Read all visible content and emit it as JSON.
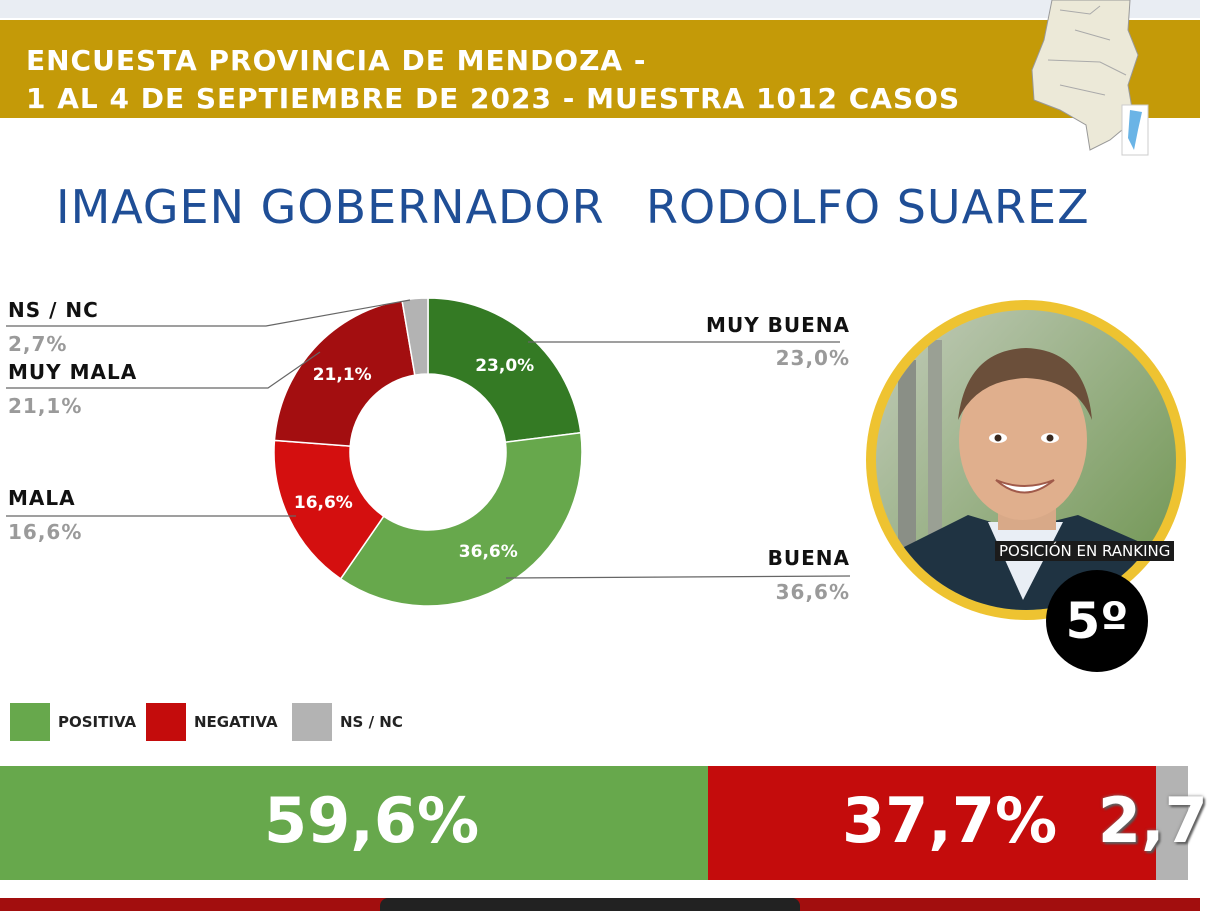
{
  "header": {
    "line1": "ENCUESTA PROVINCIA DE MENDOZA -",
    "line2": "1 AL 4 DE SEPTIEMBRE DE 2023 - MUESTRA 1012 CASOS"
  },
  "title": {
    "part1": "IMAGEN GOBERNADOR",
    "part2": "RODOLFO SUAREZ"
  },
  "colors": {
    "header_gold": "#c49a08",
    "title_blue": "#1f4e96",
    "muy_buena": "#347a24",
    "buena": "#67a84c",
    "mala": "#d40f0f",
    "muy_mala": "#a30e10",
    "ns_nc": "#b3b3b3"
  },
  "chart_data": [
    {
      "type": "pie",
      "variant": "donut",
      "categories": [
        "MUY BUENA",
        "BUENA",
        "MALA",
        "MUY MALA",
        "NS / NC"
      ],
      "values": [
        23.0,
        36.6,
        16.6,
        21.1,
        2.7
      ],
      "labels": [
        "23,0%",
        "36,6%",
        "16,6%",
        "21,1%",
        "2,7%"
      ],
      "inner_labels": [
        "23,0%",
        "36,6%",
        "16,6%",
        "21,1%",
        ""
      ],
      "colors": [
        "#347a24",
        "#67a84c",
        "#d40f0f",
        "#a30e10",
        "#b3b3b3"
      ]
    },
    {
      "type": "bar",
      "orientation": "horizontal-stacked",
      "categories": [
        "POSITIVA",
        "NEGATIVA",
        "NS / NC"
      ],
      "values": [
        59.6,
        37.7,
        2.7
      ],
      "labels": [
        "59,6%",
        "37,7%",
        "2,7"
      ],
      "colors": [
        "#67a84c",
        "#c40c0c",
        "#b3b3b3"
      ]
    }
  ],
  "ranking": {
    "label": "POSICIÓN EN RANKING",
    "value": "5º"
  }
}
